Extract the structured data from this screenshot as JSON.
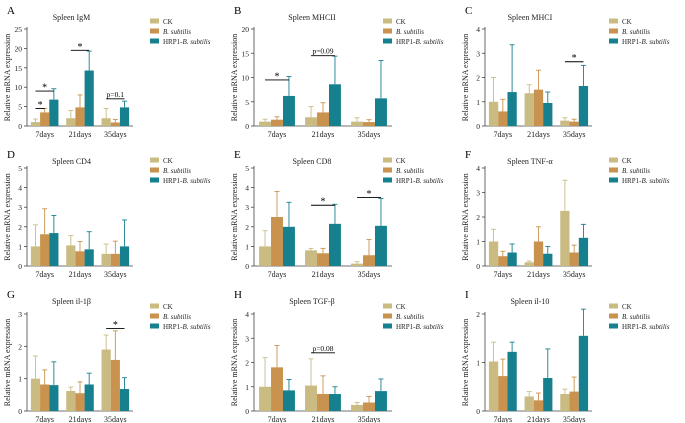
{
  "colors": {
    "ck": "#c9bb82",
    "bs": "#c9924e",
    "hrp": "#17808f"
  },
  "legend": [
    {
      "label": "CK",
      "style": "normal"
    },
    {
      "label": "B. subtilis",
      "style": "italic"
    },
    {
      "label": "HRP1-B. subtilis",
      "style": "mixed",
      "prefix": "HRP1-",
      "italic": "B. subtilis"
    }
  ],
  "chart_data": [
    {
      "letter": "A",
      "title": "Spleen IgM",
      "type": "bar",
      "ylabel": "Relative mRNA expression",
      "categories": [
        "7days",
        "21days",
        "35days"
      ],
      "ylim": [
        0,
        25
      ],
      "ticks": [
        0,
        5,
        10,
        15,
        20,
        25
      ],
      "series": [
        {
          "name": "CK",
          "values": [
            1.0,
            2.0,
            2.0
          ],
          "errors": [
            0.8,
            2.0,
            2.5
          ]
        },
        {
          "name": "B. subtilis",
          "values": [
            3.5,
            4.8,
            0.9
          ],
          "errors": [
            1.0,
            3.2,
            0.8
          ]
        },
        {
          "name": "HRP1-B. subtilis",
          "values": [
            6.8,
            14.3,
            4.8
          ],
          "errors": [
            2.8,
            5.0,
            1.6
          ]
        }
      ],
      "annotations": [
        {
          "text": "*",
          "from": [
            0,
            0
          ],
          "to": [
            0,
            1
          ],
          "level": 4.5
        },
        {
          "text": "*",
          "from": [
            0,
            0
          ],
          "to": [
            0,
            2
          ],
          "level": 9.0
        },
        {
          "text": "*",
          "from": [
            1,
            0
          ],
          "to": [
            1,
            2
          ],
          "level": 19.5
        },
        {
          "text": "p=0.1",
          "from": [
            2,
            0
          ],
          "to": [
            2,
            2
          ],
          "level": 7.0
        }
      ]
    },
    {
      "letter": "B",
      "title": "Spleen MHCII",
      "type": "bar",
      "ylabel": "Relative mRNA expression",
      "categories": [
        "7days",
        "21days",
        "35days"
      ],
      "ylim": [
        0,
        20
      ],
      "ticks": [
        0,
        5,
        10,
        15,
        20
      ],
      "series": [
        {
          "name": "CK",
          "values": [
            0.9,
            1.8,
            0.9
          ],
          "errors": [
            0.5,
            2.2,
            0.8
          ]
        },
        {
          "name": "B. subtilis",
          "values": [
            1.3,
            2.8,
            0.8
          ],
          "errors": [
            0.6,
            2.0,
            0.5
          ]
        },
        {
          "name": "HRP1-B. subtilis",
          "values": [
            6.2,
            8.6,
            5.7
          ],
          "errors": [
            4.0,
            5.8,
            7.8
          ]
        }
      ],
      "annotations": [
        {
          "text": "*",
          "from": [
            0,
            0
          ],
          "to": [
            0,
            2
          ],
          "level": 9.5
        },
        {
          "text": "p=0.09",
          "from": [
            1,
            0
          ],
          "to": [
            1,
            2
          ],
          "level": 14.5
        }
      ]
    },
    {
      "letter": "C",
      "title": "Spleen MHCI",
      "type": "bar",
      "ylabel": "Relative mRNA expression",
      "categories": [
        "7days",
        "21days",
        "35days"
      ],
      "ylim": [
        0,
        4
      ],
      "ticks": [
        0,
        1,
        2,
        3,
        4
      ],
      "series": [
        {
          "name": "CK",
          "values": [
            1.0,
            1.35,
            0.22
          ],
          "errors": [
            1.0,
            0.35,
            0.12
          ]
        },
        {
          "name": "B. subtilis",
          "values": [
            0.6,
            1.5,
            0.18
          ],
          "errors": [
            0.5,
            0.8,
            0.1
          ]
        },
        {
          "name": "HRP1-B. subtilis",
          "values": [
            1.4,
            0.95,
            1.65
          ],
          "errors": [
            1.95,
            0.45,
            0.85
          ]
        }
      ],
      "annotations": [
        {
          "text": "*",
          "from": [
            2,
            0
          ],
          "to": [
            2,
            2
          ],
          "level": 2.65
        }
      ]
    },
    {
      "letter": "D",
      "title": "Spleen CD4",
      "type": "bar",
      "ylabel": "Relative mRNA expression",
      "categories": [
        "7days",
        "21days",
        "35days"
      ],
      "ylim": [
        0,
        5
      ],
      "ticks": [
        0,
        1,
        2,
        3,
        4,
        5
      ],
      "series": [
        {
          "name": "CK",
          "values": [
            1.0,
            1.05,
            0.62
          ],
          "errors": [
            1.1,
            0.5,
            0.5
          ]
        },
        {
          "name": "B. subtilis",
          "values": [
            1.62,
            0.75,
            0.62
          ],
          "errors": [
            1.3,
            0.5,
            0.65
          ]
        },
        {
          "name": "HRP1-B. subtilis",
          "values": [
            1.68,
            0.85,
            1.0
          ],
          "errors": [
            0.9,
            0.9,
            1.35
          ]
        }
      ],
      "annotations": []
    },
    {
      "letter": "E",
      "title": "Spleen CD8",
      "type": "bar",
      "ylabel": "Relative mRNA expression",
      "categories": [
        "7days",
        "21days",
        "35days"
      ],
      "ylim": [
        0,
        5
      ],
      "ticks": [
        0,
        1,
        2,
        3,
        4,
        5
      ],
      "series": [
        {
          "name": "CK",
          "values": [
            1.0,
            0.8,
            0.12
          ],
          "errors": [
            0.8,
            0.1,
            0.1
          ]
        },
        {
          "name": "B. subtilis",
          "values": [
            2.5,
            0.65,
            0.55
          ],
          "errors": [
            1.3,
            0.25,
            0.8
          ]
        },
        {
          "name": "HRP1-B. subtilis",
          "values": [
            2.0,
            2.15,
            2.05
          ],
          "errors": [
            1.25,
            1.0,
            1.4
          ]
        }
      ],
      "annotations": [
        {
          "text": "*",
          "from": [
            1,
            0
          ],
          "to": [
            1,
            2
          ],
          "level": 3.1
        },
        {
          "text": "*",
          "from": [
            2,
            0
          ],
          "to": [
            2,
            2
          ],
          "level": 3.5
        }
      ]
    },
    {
      "letter": "F",
      "title": "Spleen TNF-α",
      "type": "bar",
      "ylabel": "Relative mRNA expression",
      "categories": [
        "7days",
        "21days",
        "35days"
      ],
      "ylim": [
        0,
        4
      ],
      "ticks": [
        0,
        1,
        2,
        3,
        4
      ],
      "series": [
        {
          "name": "CK",
          "values": [
            1.0,
            0.15,
            2.25
          ],
          "errors": [
            0.5,
            0.05,
            1.25
          ]
        },
        {
          "name": "B. subtilis",
          "values": [
            0.4,
            1.0,
            0.55
          ],
          "errors": [
            0.2,
            0.6,
            0.3
          ]
        },
        {
          "name": "HRP1-B. subtilis",
          "values": [
            0.55,
            0.5,
            1.15
          ],
          "errors": [
            0.35,
            0.3,
            0.55
          ]
        }
      ],
      "annotations": []
    },
    {
      "letter": "G",
      "title": "Spleen il-1β",
      "type": "bar",
      "ylabel": "Relative mRNA expression",
      "categories": [
        "7days",
        "21days",
        "35days"
      ],
      "ylim": [
        0,
        3
      ],
      "ticks": [
        0,
        1,
        2,
        3
      ],
      "series": [
        {
          "name": "CK",
          "values": [
            1.0,
            0.62,
            1.9
          ],
          "errors": [
            0.7,
            0.12,
            0.45
          ]
        },
        {
          "name": "B. subtilis",
          "values": [
            0.82,
            0.55,
            1.58
          ],
          "errors": [
            0.45,
            0.35,
            0.9
          ]
        },
        {
          "name": "HRP1-B. subtilis",
          "values": [
            0.8,
            0.82,
            0.68
          ],
          "errors": [
            0.72,
            0.35,
            0.35
          ]
        }
      ],
      "annotations": [
        {
          "text": "*",
          "from": [
            2,
            0
          ],
          "to": [
            2,
            2
          ],
          "level": 2.55
        }
      ]
    },
    {
      "letter": "H",
      "title": "Spleen TGF-β",
      "type": "bar",
      "ylabel": "Relative mRNA expression",
      "categories": [
        "7days",
        "21days",
        "35days"
      ],
      "ylim": [
        0,
        4
      ],
      "ticks": [
        0,
        1,
        2,
        3,
        4
      ],
      "series": [
        {
          "name": "CK",
          "values": [
            1.0,
            1.05,
            0.25
          ],
          "errors": [
            1.2,
            1.1,
            0.1
          ]
        },
        {
          "name": "B. subtilis",
          "values": [
            1.8,
            0.7,
            0.35
          ],
          "errors": [
            0.9,
            0.75,
            0.25
          ]
        },
        {
          "name": "HRP1-B. subtilis",
          "values": [
            0.85,
            0.7,
            0.82
          ],
          "errors": [
            0.45,
            0.3,
            0.5
          ]
        }
      ],
      "annotations": [
        {
          "text": "p=0.08",
          "from": [
            1,
            0
          ],
          "to": [
            1,
            2
          ],
          "level": 2.4
        }
      ]
    },
    {
      "letter": "I",
      "title": "Spleen il-10",
      "type": "bar",
      "ylabel": "Relative mRNA expression",
      "categories": [
        "7days",
        "21days",
        "35days"
      ],
      "ylim": [
        0,
        2
      ],
      "ticks": [
        0,
        1,
        2
      ],
      "series": [
        {
          "name": "CK",
          "values": [
            1.02,
            0.3,
            0.35
          ],
          "errors": [
            0.4,
            0.1,
            0.1
          ]
        },
        {
          "name": "B. subtilis",
          "values": [
            0.72,
            0.22,
            0.4
          ],
          "errors": [
            0.35,
            0.15,
            0.3
          ]
        },
        {
          "name": "HRP1-B. subtilis",
          "values": [
            1.22,
            0.68,
            1.55
          ],
          "errors": [
            0.2,
            0.6,
            0.55
          ]
        }
      ],
      "annotations": []
    }
  ]
}
